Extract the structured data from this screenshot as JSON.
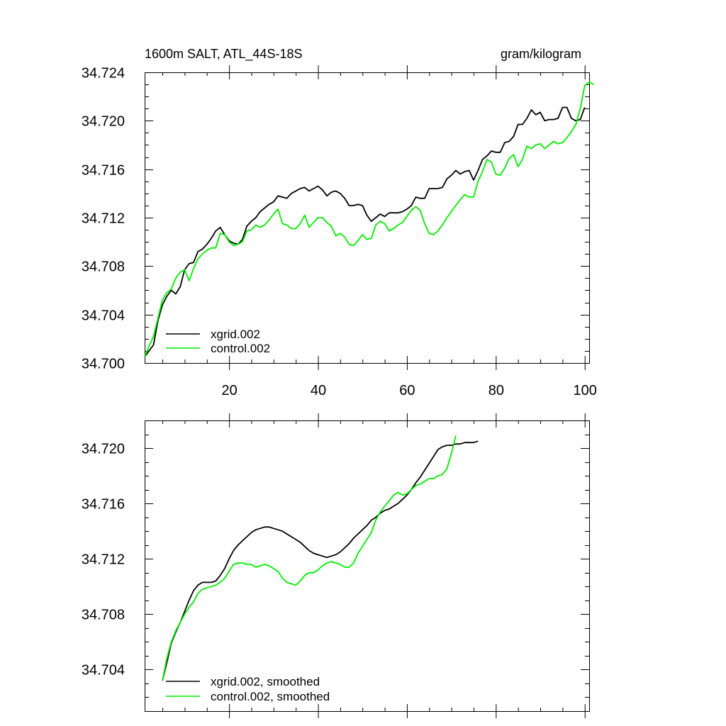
{
  "chart_data": [
    {
      "type": "line",
      "title_left": "1600m SALT, ATL_44S-18S",
      "title_right": "gram/kilogram",
      "xlim": [
        1,
        101
      ],
      "ylim": [
        34.7,
        34.724
      ],
      "x_ticks": [
        20,
        40,
        60,
        80,
        100
      ],
      "x_tick_labels": [
        "20",
        "40",
        "60",
        "80",
        "100"
      ],
      "y_ticks": [
        34.7,
        34.704,
        34.708,
        34.712,
        34.716,
        34.72,
        34.724
      ],
      "y_tick_labels": [
        "34.700",
        "34.704",
        "34.708",
        "34.712",
        "34.716",
        "34.720",
        "34.724"
      ],
      "legend_position": "bottom-left",
      "series": [
        {
          "name": "xgrid.002",
          "color": "#000000",
          "values": [
            34.7005,
            34.701,
            34.7015,
            34.7035,
            34.7048,
            34.7055,
            34.706,
            34.7057,
            34.7063,
            34.7077,
            34.7082,
            34.7083,
            34.7092,
            34.7094,
            34.7098,
            34.7103,
            34.7109,
            34.7112,
            34.7106,
            34.7101,
            34.7099,
            34.7098,
            34.7102,
            34.7113,
            34.7117,
            34.712,
            34.7125,
            34.7128,
            34.7131,
            34.7133,
            34.7138,
            34.7137,
            34.7136,
            34.714,
            34.7142,
            34.7144,
            34.7145,
            34.7142,
            34.7144,
            34.7146,
            34.7143,
            34.7138,
            34.7141,
            34.7142,
            34.714,
            34.7136,
            34.713,
            34.713,
            34.7131,
            34.713,
            34.7122,
            34.7117,
            34.712,
            34.7123,
            34.7121,
            34.7124,
            34.7124,
            34.7124,
            34.7125,
            34.7127,
            34.713,
            34.7137,
            34.7136,
            34.7136,
            34.7144,
            34.7144,
            34.7144,
            34.7145,
            34.7152,
            34.7155,
            34.7159,
            34.7156,
            34.7158,
            34.7159,
            34.7151,
            34.7159,
            34.7168,
            34.7171,
            34.7175,
            34.7174,
            34.7174,
            34.7182,
            34.7183,
            34.7187,
            34.7197,
            34.7197,
            34.7202,
            34.7209,
            34.7205,
            34.7207,
            34.72,
            34.7201,
            34.7201,
            34.7202,
            34.7211,
            34.7211,
            34.7202,
            34.72,
            34.7201,
            34.7211
          ]
        },
        {
          "name": "control.002",
          "color": "#00ee00",
          "values": [
            34.7005,
            34.7014,
            34.7022,
            34.7037,
            34.7052,
            34.7058,
            34.7061,
            34.707,
            34.7075,
            34.7077,
            34.7068,
            34.7078,
            34.7086,
            34.709,
            34.7093,
            34.7095,
            34.7095,
            34.7107,
            34.7106,
            34.71,
            34.7097,
            34.7098,
            34.71,
            34.7109,
            34.711,
            34.7114,
            34.7112,
            34.7114,
            34.7118,
            34.7123,
            34.7127,
            34.7115,
            34.7114,
            34.7111,
            34.7111,
            34.7115,
            34.7122,
            34.7112,
            34.7116,
            34.712,
            34.712,
            34.7116,
            34.7113,
            34.7105,
            34.7107,
            34.7104,
            34.7098,
            34.7097,
            34.7101,
            34.7106,
            34.7102,
            34.7103,
            34.7114,
            34.7117,
            34.7115,
            34.7109,
            34.7111,
            34.7114,
            34.7116,
            34.7121,
            34.7126,
            34.7129,
            34.7126,
            34.7115,
            34.7107,
            34.7106,
            34.7109,
            34.7114,
            34.712,
            34.7125,
            34.713,
            34.7135,
            34.7139,
            34.7137,
            34.7137,
            34.715,
            34.7158,
            34.7168,
            34.7166,
            34.7156,
            34.7155,
            34.7161,
            34.7169,
            34.7172,
            34.7162,
            34.7168,
            34.7179,
            34.7177,
            34.718,
            34.7181,
            34.7177,
            34.718,
            34.7183,
            34.7181,
            34.7182,
            34.7186,
            34.7191,
            34.7197,
            34.721,
            34.7229,
            34.7232,
            34.723
          ]
        }
      ]
    },
    {
      "type": "line",
      "xlim": [
        1,
        101
      ],
      "ylim": [
        34.701,
        34.722
      ],
      "x_ticks": [
        20,
        40,
        60,
        80,
        100
      ],
      "y_ticks": [
        34.704,
        34.708,
        34.712,
        34.716,
        34.72
      ],
      "y_tick_labels": [
        "34.704",
        "34.708",
        "34.712",
        "34.716",
        "34.720"
      ],
      "legend_position": "bottom-left",
      "series": [
        {
          "name": "xgrid.002, smoothed",
          "color": "#000000",
          "start_x": 5,
          "values": [
            34.7032,
            34.7045,
            34.7059,
            34.7067,
            34.7074,
            34.7082,
            34.709,
            34.7097,
            34.7101,
            34.7103,
            34.7103,
            34.7103,
            34.7104,
            34.7108,
            34.7113,
            34.712,
            34.7126,
            34.713,
            34.7133,
            34.7136,
            34.7139,
            34.7141,
            34.7142,
            34.7143,
            34.7143,
            34.7142,
            34.7141,
            34.714,
            34.7138,
            34.7136,
            34.7134,
            34.7132,
            34.7129,
            34.7126,
            34.7124,
            34.7123,
            34.7122,
            34.7121,
            34.7122,
            34.7123,
            34.7125,
            34.7128,
            34.7131,
            34.7135,
            34.7138,
            34.7141,
            34.7144,
            34.7148,
            34.715,
            34.7153,
            34.7155,
            34.7156,
            34.7158,
            34.716,
            34.7163,
            34.7166,
            34.717,
            34.7175,
            34.7179,
            34.7184,
            34.7189,
            34.7194,
            34.7199,
            34.7201,
            34.7202,
            34.7202,
            34.7203,
            34.7203,
            34.7204,
            34.7204,
            34.7204,
            34.7205
          ]
        },
        {
          "name": "control.002, smoothed",
          "color": "#00ee00",
          "start_x": 5,
          "values": [
            34.7032,
            34.7048,
            34.706,
            34.7068,
            34.7074,
            34.708,
            34.7085,
            34.7089,
            34.7095,
            34.7098,
            34.7099,
            34.71,
            34.7101,
            34.7103,
            34.7106,
            34.7111,
            34.7116,
            34.7117,
            34.7117,
            34.7116,
            34.7116,
            34.7114,
            34.7115,
            34.7116,
            34.7115,
            34.7113,
            34.7111,
            34.7106,
            34.7103,
            34.7102,
            34.7101,
            34.7104,
            34.7108,
            34.711,
            34.711,
            34.7112,
            34.7115,
            34.7117,
            34.7118,
            34.7117,
            34.7116,
            34.7114,
            34.7114,
            34.7117,
            34.7124,
            34.7129,
            34.7134,
            34.7139,
            34.7148,
            34.7154,
            34.7158,
            34.7162,
            34.7166,
            34.7168,
            34.7166,
            34.7167,
            34.717,
            34.7173,
            34.7174,
            34.7176,
            34.7178,
            34.7178,
            34.718,
            34.7181,
            34.7185,
            34.7196,
            34.7209
          ]
        }
      ]
    }
  ]
}
